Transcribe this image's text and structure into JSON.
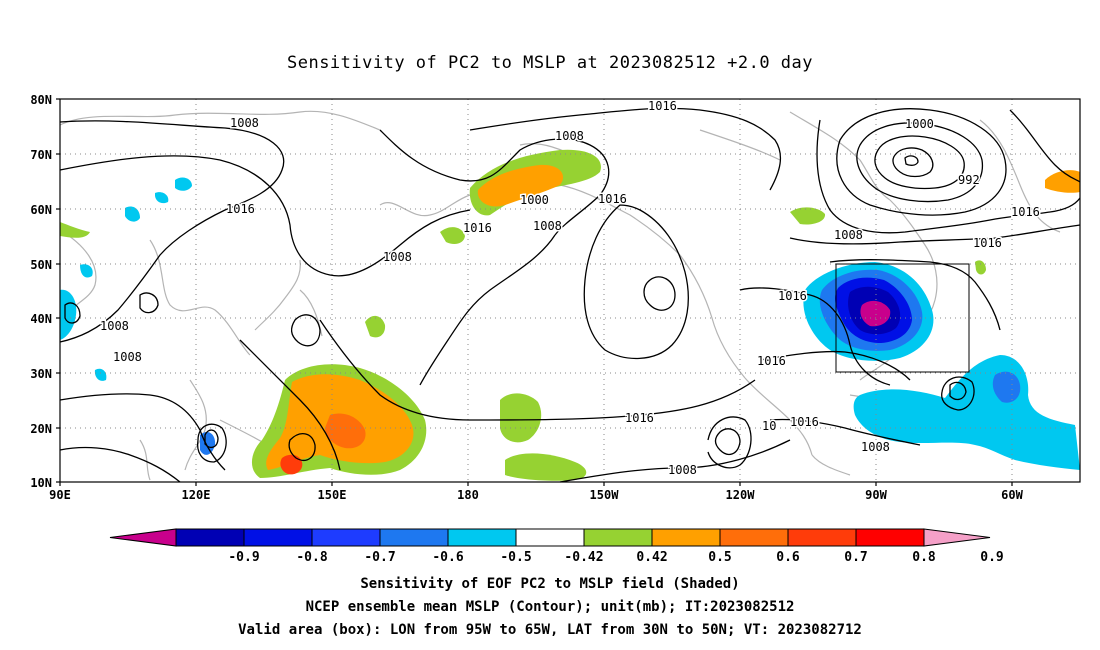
{
  "title": "Sensitivity of PC2 to MSLP at 2023082512 +2.0 day",
  "map": {
    "lat_labels": [
      "80N",
      "70N",
      "60N",
      "50N",
      "40N",
      "30N",
      "20N",
      "10N"
    ],
    "lon_labels": [
      "90E",
      "120E",
      "150E",
      "180",
      "150W",
      "120W",
      "90W",
      "60W"
    ],
    "contour_labels": [
      "1008",
      "1016",
      "1008",
      "1016",
      "1008",
      "1016",
      "1008",
      "1008",
      "1016",
      "1008",
      "1016",
      "1000",
      "1008",
      "1016",
      "1000",
      "992",
      "1016",
      "1008",
      "1016",
      "1016",
      "1016",
      "1016",
      "1016",
      "1016",
      "1008",
      "1016",
      "1008"
    ],
    "valid_box": {
      "lon_from": "95W",
      "lon_to": "65W",
      "lat_from": "30N",
      "lat_to": "50N"
    }
  },
  "colorbar": {
    "labels": [
      "-0.9",
      "-0.8",
      "-0.7",
      "-0.6",
      "-0.5",
      "-0.42",
      "0.42",
      "0.5",
      "0.6",
      "0.7",
      "0.8",
      "0.9"
    ],
    "colors": [
      "#c8008c",
      "#0000b4",
      "#0010e6",
      "#1e3cff",
      "#1e78f0",
      "#00c8f0",
      "#ffffff",
      "#96d232",
      "#ffa000",
      "#ff6e0a",
      "#ff3c0a",
      "#ff0000",
      "#f5a0c8"
    ]
  },
  "captions": {
    "line1": "Sensitivity of EOF PC2 to MSLP field (Shaded)",
    "line2": "NCEP ensemble mean MSLP (Contour); unit(mb); IT:2023082512",
    "line3": "Valid area (box): LON from 95W to 65W, LAT from 30N to 50N; VT: 2023082712"
  }
}
